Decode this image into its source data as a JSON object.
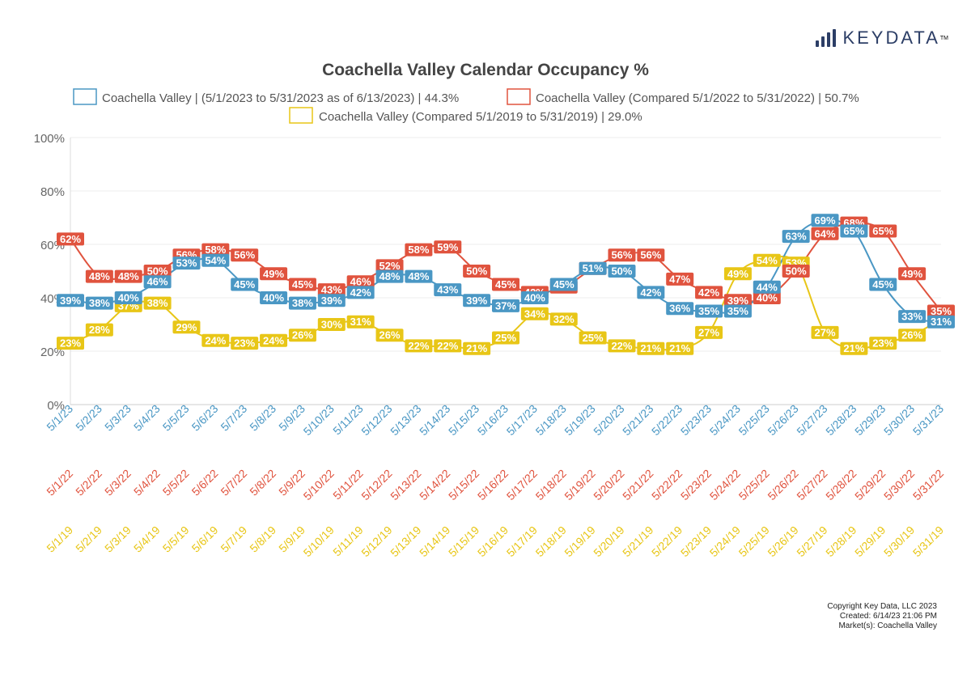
{
  "brand": {
    "name": "KEYDATA",
    "tm": "TM"
  },
  "colors": {
    "series1": "#4a97c4",
    "series2": "#e0533e",
    "series3": "#e8c617",
    "title": "#444444"
  },
  "footer": {
    "copyright": "Copyright Key Data, LLC 2023",
    "created": "Created: 6/14/23 21:06 PM",
    "market": "Market(s):  Coachella Valley"
  },
  "chart_data": {
    "type": "line",
    "title": "Coachella Valley Calendar Occupancy %",
    "ylim": [
      0,
      100
    ],
    "yticks": [
      "0%",
      "20%",
      "40%",
      "60%",
      "80%",
      "100%"
    ],
    "legend": [
      "Coachella Valley | (5/1/2023 to 5/31/2023 as of 6/13/2023) | 44.3%",
      "Coachella Valley (Compared 5/1/2022 to 5/31/2022) | 50.7%",
      "Coachella Valley (Compared 5/1/2019 to 5/31/2019) | 29.0%"
    ],
    "series": [
      {
        "name": "Coachella Valley | (5/1/2023 to 5/31/2023 as of 6/13/2023) | 44.3%",
        "categories": [
          "5/1/23",
          "5/2/23",
          "5/3/23",
          "5/4/23",
          "5/5/23",
          "5/6/23",
          "5/7/23",
          "5/8/23",
          "5/9/23",
          "5/10/23",
          "5/11/23",
          "5/12/23",
          "5/13/23",
          "5/14/23",
          "5/15/23",
          "5/16/23",
          "5/17/23",
          "5/18/23",
          "5/19/23",
          "5/20/23",
          "5/21/23",
          "5/22/23",
          "5/23/23",
          "5/24/23",
          "5/25/23",
          "5/26/23",
          "5/27/23",
          "5/28/23",
          "5/29/23",
          "5/30/23",
          "5/31/23"
        ],
        "values": [
          39,
          38,
          40,
          46,
          53,
          54,
          45,
          40,
          38,
          39,
          42,
          48,
          48,
          43,
          39,
          37,
          40,
          45,
          51,
          50,
          42,
          36,
          35,
          35,
          44,
          63,
          69,
          65,
          45,
          33,
          31
        ]
      },
      {
        "name": "Coachella Valley (Compared 5/1/2022 to 5/31/2022) | 50.7%",
        "categories": [
          "5/1/22",
          "5/2/22",
          "5/3/22",
          "5/4/22",
          "5/5/22",
          "5/6/22",
          "5/7/22",
          "5/8/22",
          "5/9/22",
          "5/10/22",
          "5/11/22",
          "5/12/22",
          "5/13/22",
          "5/14/22",
          "5/15/22",
          "5/16/22",
          "5/17/22",
          "5/18/22",
          "5/19/22",
          "5/20/22",
          "5/21/22",
          "5/22/22",
          "5/23/22",
          "5/24/22",
          "5/25/22",
          "5/26/22",
          "5/27/22",
          "5/28/22",
          "5/29/22",
          "5/30/22",
          "5/31/22"
        ],
        "values": [
          62,
          48,
          48,
          50,
          56,
          58,
          56,
          49,
          45,
          43,
          46,
          52,
          58,
          59,
          50,
          45,
          42,
          44,
          51,
          56,
          56,
          47,
          42,
          39,
          40,
          50,
          64,
          68,
          65,
          49,
          35
        ]
      },
      {
        "name": "Coachella Valley (Compared 5/1/2019 to 5/31/2019) | 29.0%",
        "categories": [
          "5/1/19",
          "5/2/19",
          "5/3/19",
          "5/4/19",
          "5/5/19",
          "5/6/19",
          "5/7/19",
          "5/8/19",
          "5/9/19",
          "5/10/19",
          "5/11/19",
          "5/12/19",
          "5/13/19",
          "5/14/19",
          "5/15/19",
          "5/16/19",
          "5/17/19",
          "5/18/19",
          "5/19/19",
          "5/20/19",
          "5/21/19",
          "5/22/19",
          "5/23/19",
          "5/24/19",
          "5/25/19",
          "5/26/19",
          "5/27/19",
          "5/28/19",
          "5/29/19",
          "5/30/19",
          "5/31/19"
        ],
        "values": [
          23,
          28,
          37,
          38,
          29,
          24,
          23,
          24,
          26,
          30,
          31,
          26,
          22,
          22,
          21,
          25,
          34,
          32,
          25,
          22,
          21,
          21,
          27,
          49,
          54,
          53,
          27,
          21,
          23,
          26,
          32
        ]
      }
    ]
  }
}
